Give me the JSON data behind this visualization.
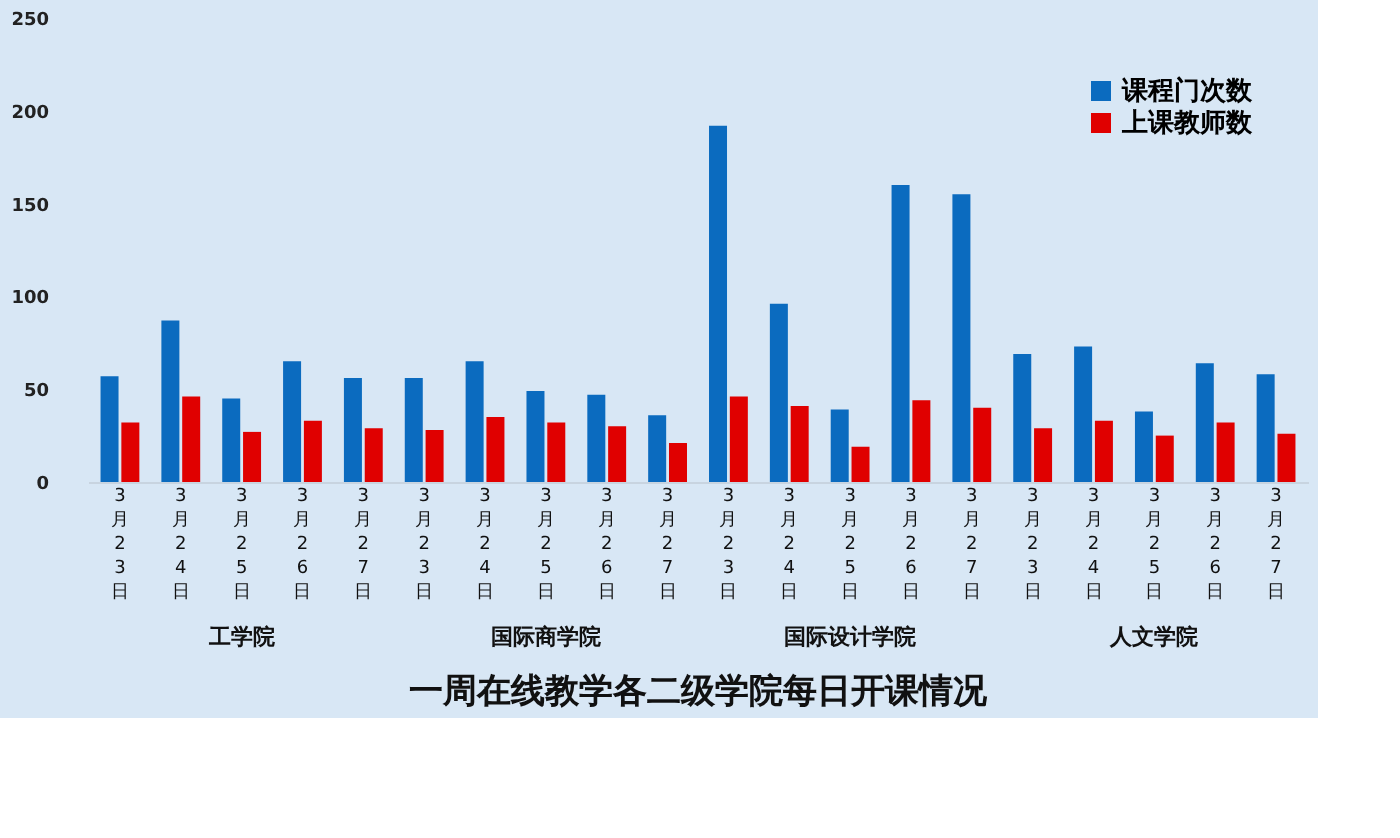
{
  "chart_data": {
    "type": "bar",
    "title": "一周在线教学各二级学院每日开课情况",
    "categories": [
      "3月23日",
      "3月24日",
      "3月25日",
      "3月26日",
      "3月27日",
      "3月23日",
      "3月24日",
      "3月25日",
      "3月26日",
      "3月27日",
      "3月23日",
      "3月24日",
      "3月25日",
      "3月26日",
      "3月27日",
      "3月23日",
      "3月24日",
      "3月25日",
      "3月26日",
      "3月27日"
    ],
    "series": [
      {
        "name": "课程门次数",
        "color": "#0b6bbf",
        "values": [
          57,
          87,
          45,
          65,
          56,
          56,
          65,
          49,
          47,
          36,
          192,
          96,
          39,
          160,
          155,
          69,
          73,
          38,
          64,
          58
        ]
      },
      {
        "name": "上课教师数",
        "color": "#e00000",
        "values": [
          32,
          46,
          27,
          33,
          29,
          28,
          35,
          32,
          30,
          21,
          46,
          41,
          19,
          44,
          40,
          29,
          33,
          25,
          32,
          26
        ]
      }
    ],
    "annotations": [
      "工学院",
      "国际商学院",
      "国际设计学院",
      "人文学院"
    ],
    "ylim": [
      0,
      250
    ],
    "yticks": [
      0,
      50,
      100,
      150,
      200,
      250
    ],
    "grid": false,
    "legend": "top right"
  }
}
